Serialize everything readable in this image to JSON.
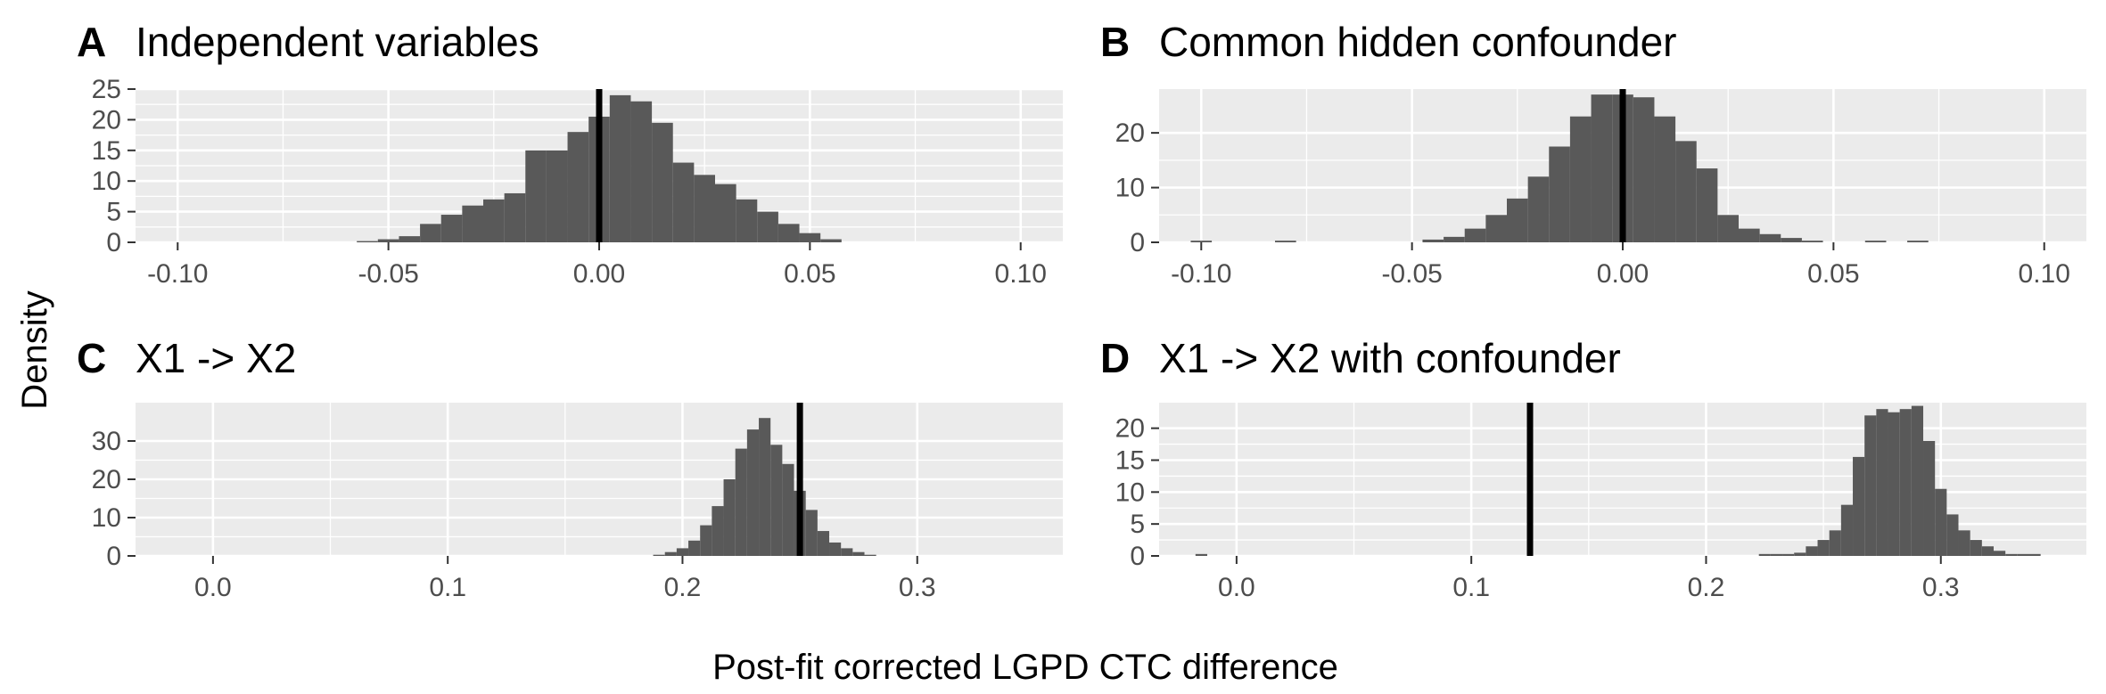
{
  "figure": {
    "ylabel": "Density",
    "xlabel": "Post-fit corrected LGPD CTC difference"
  },
  "colors": {
    "panel_background": "#ebebeb",
    "gridline": "#ffffff",
    "bar_fill": "#595959",
    "reference_line": "#000000",
    "tick_text": "#4d4d4d",
    "tick_mark": "#333333"
  },
  "chart_data": [
    {
      "type": "bar",
      "tag": "A",
      "title": "Independent variables",
      "xlim": [
        -0.11,
        0.11
      ],
      "ylim": [
        0,
        25
      ],
      "xticks": [
        -0.1,
        -0.05,
        0.0,
        0.05,
        0.1
      ],
      "xtick_labels": [
        "-0.10",
        "-0.05",
        "0.00",
        "0.05",
        "0.10"
      ],
      "yticks": [
        0,
        5,
        10,
        15,
        20,
        25
      ],
      "ytick_labels": [
        "0",
        "5",
        "10",
        "15",
        "20",
        "25"
      ],
      "reference_line_x": 0.0,
      "bin_width": 0.005,
      "bins_start": [
        -0.0575,
        -0.0525,
        -0.0475,
        -0.0425,
        -0.0375,
        -0.0325,
        -0.0275,
        -0.0225,
        -0.0175,
        -0.0125,
        -0.0075,
        -0.0025,
        0.0025,
        0.0075,
        0.0125,
        0.0175,
        0.0225,
        0.0275,
        0.0325,
        0.0375,
        0.0425,
        0.0475,
        0.0525
      ],
      "counts": [
        0.2,
        0.5,
        1,
        3,
        4.5,
        6,
        7,
        8,
        15,
        15,
        18,
        20.5,
        24,
        23,
        19.5,
        13,
        11,
        9.5,
        7,
        5,
        3,
        1.5,
        0.5
      ]
    },
    {
      "type": "bar",
      "tag": "B",
      "title": "Common hidden confounder",
      "xlim": [
        -0.11,
        0.11
      ],
      "ylim": [
        0,
        28
      ],
      "xticks": [
        -0.1,
        -0.05,
        0.0,
        0.05,
        0.1
      ],
      "xtick_labels": [
        "-0.10",
        "-0.05",
        "0.00",
        "0.05",
        "0.10"
      ],
      "yticks": [
        0,
        10,
        20
      ],
      "ytick_labels": [
        "0",
        "10",
        "20"
      ],
      "reference_line_x": 0.0,
      "bin_width": 0.005,
      "bins_start": [
        -0.1025,
        -0.0825,
        -0.0475,
        -0.0425,
        -0.0375,
        -0.0325,
        -0.0275,
        -0.0225,
        -0.0175,
        -0.0125,
        -0.0075,
        -0.0025,
        0.0025,
        0.0075,
        0.0125,
        0.0175,
        0.0225,
        0.0275,
        0.0325,
        0.0375,
        0.0425,
        0.0575,
        0.0675
      ],
      "counts": [
        0.3,
        0.3,
        0.5,
        1,
        2.5,
        5,
        8,
        12,
        17.5,
        23,
        27,
        27,
        26.5,
        23,
        18.5,
        13.5,
        5,
        2.5,
        1.5,
        0.8,
        0.3,
        0.3,
        0.3
      ]
    },
    {
      "type": "bar",
      "tag": "C",
      "title": "X1 -> X2",
      "xlim": [
        -0.033,
        0.362
      ],
      "ylim": [
        0,
        40
      ],
      "xticks": [
        0.0,
        0.1,
        0.2,
        0.3
      ],
      "xtick_labels": [
        "0.0",
        "0.1",
        "0.2",
        "0.3"
      ],
      "yticks": [
        0,
        10,
        20,
        30
      ],
      "ytick_labels": [
        "0",
        "10",
        "20",
        "30"
      ],
      "reference_line_x": 0.25,
      "bin_width": 0.005,
      "bins_start": [
        0.1875,
        0.1925,
        0.1975,
        0.2025,
        0.2075,
        0.2125,
        0.2175,
        0.2225,
        0.2275,
        0.2325,
        0.2375,
        0.2425,
        0.2475,
        0.2525,
        0.2575,
        0.2625,
        0.2675,
        0.2725,
        0.2775
      ],
      "counts": [
        0.3,
        1,
        2,
        4,
        8,
        13,
        20,
        28,
        33,
        36,
        29,
        24,
        17,
        12,
        6.5,
        3.5,
        2,
        1,
        0.3
      ]
    },
    {
      "type": "bar",
      "tag": "D",
      "title": "X1 -> X2 with confounder",
      "xlim": [
        -0.033,
        0.362
      ],
      "ylim": [
        0,
        24
      ],
      "xticks": [
        0.0,
        0.1,
        0.2,
        0.3
      ],
      "xtick_labels": [
        "0.0",
        "0.1",
        "0.2",
        "0.3"
      ],
      "yticks": [
        0,
        5,
        10,
        15,
        20
      ],
      "ytick_labels": [
        "0",
        "5",
        "10",
        "15",
        "20"
      ],
      "reference_line_x": 0.125,
      "bin_width": 0.005,
      "bins_start": [
        -0.0175,
        0.2225,
        0.2275,
        0.2325,
        0.2375,
        0.2425,
        0.2475,
        0.2525,
        0.2575,
        0.2625,
        0.2675,
        0.2725,
        0.2775,
        0.2825,
        0.2875,
        0.2925,
        0.2975,
        0.3025,
        0.3075,
        0.3125,
        0.3175,
        0.3225,
        0.3275,
        0.3325,
        0.3375
      ],
      "counts": [
        0.3,
        0.3,
        0.3,
        0.3,
        0.5,
        1.5,
        2.5,
        4,
        8,
        15.5,
        22,
        23,
        22.5,
        23,
        23.5,
        18,
        10.5,
        6.5,
        4,
        2.5,
        1.5,
        0.8,
        0.3,
        0.3,
        0.3
      ]
    }
  ]
}
